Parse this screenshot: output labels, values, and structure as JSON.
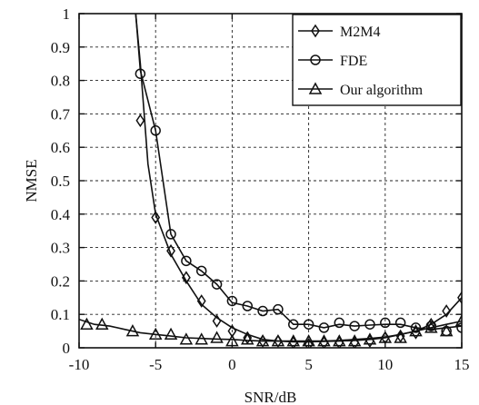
{
  "chart_data": {
    "type": "line",
    "xlabel": "SNR/dB",
    "ylabel": "NMSE",
    "xlim": [
      -10,
      15
    ],
    "ylim": [
      0,
      1
    ],
    "xticks": [
      -10,
      -5,
      0,
      5,
      10,
      15
    ],
    "yticks": [
      0,
      0.1,
      0.2,
      0.3,
      0.4,
      0.5,
      0.6,
      0.7,
      0.8,
      0.9,
      1
    ],
    "ytick_labels": [
      "0",
      "0.1",
      "0.2",
      "0.3",
      "0.4",
      "0.5",
      "0.6",
      "0.7",
      "0.8",
      "0.9",
      "1"
    ],
    "grid": true,
    "legend_position": "top-right",
    "series": [
      {
        "name": "M2M4",
        "marker": "diamond",
        "color": "#111111",
        "line": [
          [
            -6.3,
            1.0
          ],
          [
            -6,
            0.85
          ],
          [
            -5.5,
            0.55
          ],
          [
            -5,
            0.4
          ],
          [
            -4,
            0.28
          ],
          [
            -3,
            0.2
          ],
          [
            -2,
            0.13
          ],
          [
            -1,
            0.09
          ],
          [
            0,
            0.06
          ],
          [
            1,
            0.04
          ],
          [
            2,
            0.025
          ],
          [
            3,
            0.02
          ],
          [
            4,
            0.018
          ],
          [
            5,
            0.018
          ],
          [
            6,
            0.019
          ],
          [
            7,
            0.02
          ],
          [
            8,
            0.022
          ],
          [
            9,
            0.025
          ],
          [
            10,
            0.03
          ],
          [
            11,
            0.04
          ],
          [
            12,
            0.05
          ],
          [
            13,
            0.07
          ],
          [
            14,
            0.1
          ],
          [
            15,
            0.15
          ]
        ],
        "markers": [
          [
            -6,
            0.68
          ],
          [
            -5,
            0.39
          ],
          [
            -4,
            0.29
          ],
          [
            -3,
            0.21
          ],
          [
            -2,
            0.14
          ],
          [
            -1,
            0.08
          ],
          [
            0,
            0.05
          ],
          [
            1,
            0.03
          ],
          [
            2,
            0.02
          ],
          [
            3,
            0.02
          ],
          [
            4,
            0.015
          ],
          [
            5,
            0.01
          ],
          [
            6,
            0.015
          ],
          [
            7,
            0.015
          ],
          [
            8,
            0.015
          ],
          [
            9,
            0.02
          ],
          [
            10,
            0.03
          ],
          [
            11,
            0.035
          ],
          [
            12,
            0.045
          ],
          [
            13,
            0.07
          ],
          [
            14,
            0.11
          ],
          [
            15,
            0.15
          ]
        ]
      },
      {
        "name": "FDE",
        "marker": "circle",
        "color": "#111111",
        "line": [
          [
            -6.3,
            1.0
          ],
          [
            -6,
            0.83
          ],
          [
            -5,
            0.65
          ],
          [
            -4,
            0.34
          ],
          [
            -3,
            0.26
          ],
          [
            -2,
            0.23
          ],
          [
            -1,
            0.19
          ],
          [
            0,
            0.135
          ],
          [
            1,
            0.125
          ],
          [
            2,
            0.11
          ],
          [
            3,
            0.115
          ],
          [
            4,
            0.07
          ],
          [
            5,
            0.07
          ],
          [
            6,
            0.06
          ],
          [
            7,
            0.07
          ],
          [
            8,
            0.065
          ],
          [
            9,
            0.068
          ],
          [
            10,
            0.07
          ],
          [
            11,
            0.07
          ],
          [
            12,
            0.06
          ],
          [
            13,
            0.055
          ],
          [
            14,
            0.06
          ],
          [
            15,
            0.065
          ]
        ],
        "markers": [
          [
            -6,
            0.82
          ],
          [
            -5,
            0.65
          ],
          [
            -4,
            0.34
          ],
          [
            -3,
            0.26
          ],
          [
            -2,
            0.23
          ],
          [
            -1,
            0.19
          ],
          [
            0,
            0.14
          ],
          [
            1,
            0.125
          ],
          [
            2,
            0.11
          ],
          [
            3,
            0.115
          ],
          [
            4,
            0.07
          ],
          [
            5,
            0.07
          ],
          [
            6,
            0.06
          ],
          [
            7,
            0.075
          ],
          [
            8,
            0.065
          ],
          [
            9,
            0.07
          ],
          [
            10,
            0.075
          ],
          [
            11,
            0.075
          ],
          [
            12,
            0.06
          ],
          [
            13,
            0.065
          ],
          [
            14,
            0.05
          ],
          [
            15,
            0.06
          ]
        ]
      },
      {
        "name": "Our algorithm",
        "marker": "triangle",
        "color": "#111111",
        "line": [
          [
            -10,
            0.085
          ],
          [
            -9,
            0.07
          ],
          [
            -8,
            0.065
          ],
          [
            -7,
            0.055
          ],
          [
            -6,
            0.045
          ],
          [
            -5,
            0.04
          ],
          [
            -4,
            0.035
          ],
          [
            -3,
            0.03
          ],
          [
            -2,
            0.028
          ],
          [
            -1,
            0.026
          ],
          [
            0,
            0.025
          ],
          [
            1,
            0.022
          ],
          [
            2,
            0.02
          ],
          [
            3,
            0.02
          ],
          [
            4,
            0.02
          ],
          [
            5,
            0.02
          ],
          [
            6,
            0.02
          ],
          [
            7,
            0.022
          ],
          [
            8,
            0.025
          ],
          [
            9,
            0.028
          ],
          [
            10,
            0.032
          ],
          [
            11,
            0.04
          ],
          [
            12,
            0.05
          ],
          [
            13,
            0.06
          ],
          [
            14,
            0.07
          ],
          [
            15,
            0.08
          ]
        ],
        "markers": [
          [
            -9.5,
            0.07
          ],
          [
            -8.5,
            0.07
          ],
          [
            -6.5,
            0.05
          ],
          [
            -5,
            0.04
          ],
          [
            -4,
            0.04
          ],
          [
            -3,
            0.025
          ],
          [
            -2,
            0.025
          ],
          [
            -1,
            0.03
          ],
          [
            0,
            0.02
          ],
          [
            1,
            0.025
          ],
          [
            2,
            0.02
          ],
          [
            3,
            0.02
          ],
          [
            4,
            0.02
          ],
          [
            5,
            0.02
          ],
          [
            6,
            0.02
          ],
          [
            7,
            0.02
          ],
          [
            8,
            0.02
          ],
          [
            9,
            0.025
          ],
          [
            10,
            0.03
          ],
          [
            11,
            0.03
          ],
          [
            12,
            0.05
          ],
          [
            13,
            0.06
          ],
          [
            14,
            0.05
          ],
          [
            15,
            0.08
          ]
        ]
      }
    ]
  }
}
